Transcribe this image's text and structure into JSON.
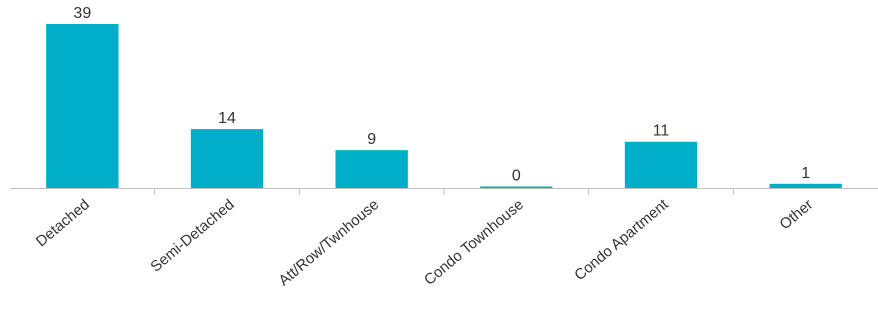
{
  "chart_data": {
    "type": "bar",
    "categories": [
      "Detached",
      "Semi-Detached",
      "Att/Row/Twnhouse",
      "Condo Townhouse",
      "Condo Apartment",
      "Other"
    ],
    "values": [
      39,
      14,
      9,
      0,
      11,
      1
    ],
    "ylim": [
      0,
      39
    ],
    "grid": false,
    "legend": "none",
    "data_labels": true,
    "colors": {
      "bar": "#00AEC7",
      "axis": "#BFBFBF",
      "text": "#333333"
    }
  }
}
